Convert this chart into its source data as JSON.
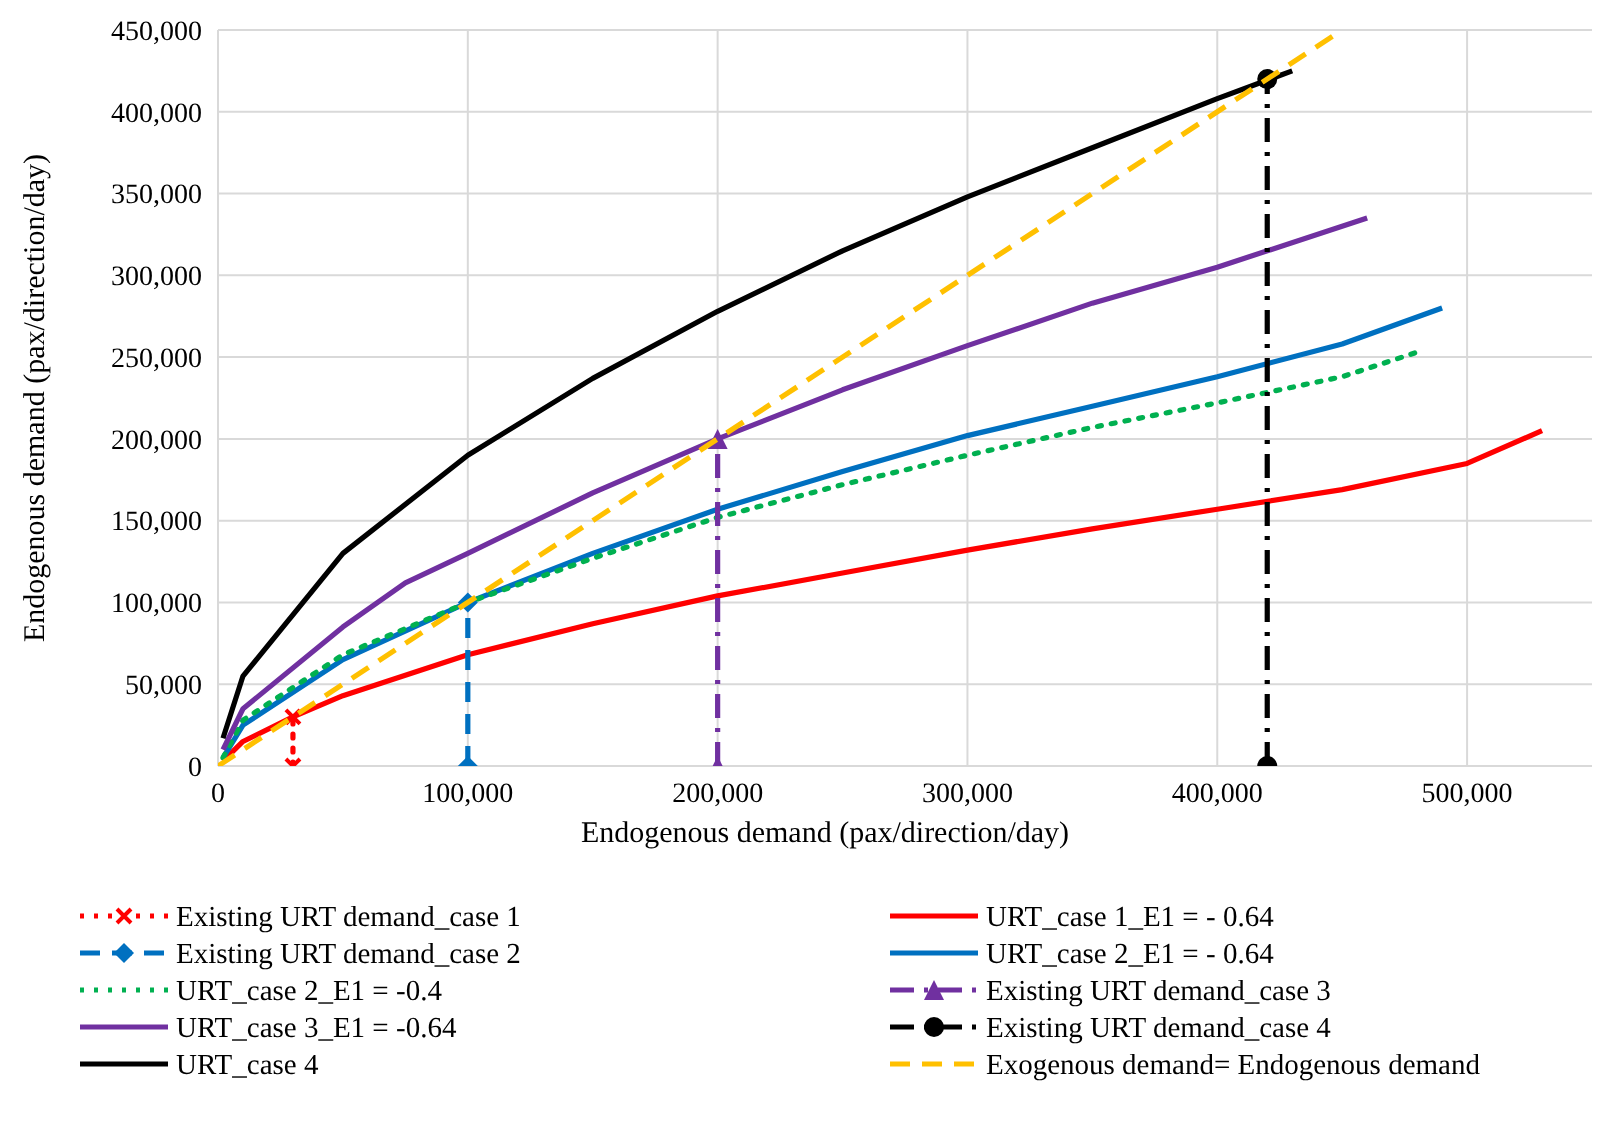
{
  "chart_data": {
    "type": "line",
    "xlabel": "Endogenous demand (pax/direction/day)",
    "ylabel": "Endogenous demand (pax/direction/day)",
    "xlim": [
      0,
      550000
    ],
    "ylim": [
      0,
      450000
    ],
    "xticks": [
      {
        "value": 0,
        "label": "0"
      },
      {
        "value": 100000,
        "label": "100,000"
      },
      {
        "value": 200000,
        "label": "200,000"
      },
      {
        "value": 300000,
        "label": "300,000"
      },
      {
        "value": 400000,
        "label": "400,000"
      },
      {
        "value": 500000,
        "label": "500,000"
      }
    ],
    "yticks": [
      {
        "value": 0,
        "label": "0"
      },
      {
        "value": 50000,
        "label": "50,000"
      },
      {
        "value": 100000,
        "label": "100,000"
      },
      {
        "value": 150000,
        "label": "150,000"
      },
      {
        "value": 200000,
        "label": "200,000"
      },
      {
        "value": 250000,
        "label": "250,000"
      },
      {
        "value": 300000,
        "label": "300,000"
      },
      {
        "value": 350000,
        "label": "350,000"
      },
      {
        "value": 400000,
        "label": "400,000"
      },
      {
        "value": 450000,
        "label": "450,000"
      }
    ],
    "grid": true,
    "legend": "bottom",
    "series": [
      {
        "name": "Existing URT demand_case 1",
        "color": "#ff0000",
        "x": [
          30000,
          30000
        ],
        "values": [
          0,
          30000
        ],
        "line_style": "dotted",
        "marker": "cross"
      },
      {
        "name": "URT_case 1_E1 = - 0.64",
        "color": "#ff0000",
        "x": [
          2000,
          10000,
          30000,
          50000,
          100000,
          150000,
          200000,
          250000,
          300000,
          350000,
          400000,
          450000,
          500000,
          530000
        ],
        "values": [
          3000,
          15000,
          30000,
          43000,
          68000,
          87000,
          104000,
          118000,
          132000,
          145000,
          157000,
          169000,
          185000,
          205000
        ],
        "line_style": "solid",
        "marker": "none"
      },
      {
        "name": "Existing URT demand_case 2",
        "color": "#0070c0",
        "x": [
          100000,
          100000
        ],
        "values": [
          0,
          100000
        ],
        "line_style": "dashed",
        "marker": "diamond"
      },
      {
        "name": "URT_case 2_E1 = - 0.64",
        "color": "#0070c0",
        "x": [
          2000,
          10000,
          50000,
          100000,
          150000,
          200000,
          250000,
          300000,
          350000,
          400000,
          450000,
          490000
        ],
        "values": [
          5000,
          25000,
          65000,
          100000,
          130000,
          157000,
          180000,
          202000,
          220000,
          238000,
          258000,
          280000
        ],
        "line_style": "solid",
        "marker": "none"
      },
      {
        "name": "URT_case 2_E1 = -0.4",
        "color": "#00b050",
        "x": [
          2000,
          10000,
          50000,
          100000,
          150000,
          200000,
          250000,
          300000,
          350000,
          400000,
          450000,
          480000
        ],
        "values": [
          5000,
          28000,
          68000,
          100000,
          127000,
          152000,
          172000,
          190000,
          207000,
          222000,
          238000,
          253000
        ],
        "line_style": "dotted",
        "marker": "none"
      },
      {
        "name": "Existing URT demand_case 3",
        "color": "#7030a0",
        "x": [
          200000,
          200000
        ],
        "values": [
          0,
          200000
        ],
        "line_style": "dashdot",
        "marker": "triangle"
      },
      {
        "name": "URT_case 3_E1 = -0.64",
        "color": "#7030a0",
        "x": [
          2000,
          10000,
          50000,
          75000,
          100000,
          150000,
          200000,
          250000,
          300000,
          350000,
          400000,
          460000
        ],
        "values": [
          10000,
          35000,
          85000,
          112000,
          130000,
          167000,
          200000,
          230000,
          257000,
          283000,
          305000,
          335000
        ],
        "line_style": "solid",
        "marker": "none"
      },
      {
        "name": "Existing URT demand_case 4",
        "color": "#000000",
        "x": [
          420000,
          420000
        ],
        "values": [
          0,
          420000
        ],
        "line_style": "dashdot",
        "marker": "circle"
      },
      {
        "name": "URT_case 4",
        "color": "#000000",
        "x": [
          2000,
          10000,
          50000,
          100000,
          150000,
          200000,
          250000,
          300000,
          350000,
          400000,
          430000
        ],
        "values": [
          17000,
          55000,
          130000,
          190000,
          237000,
          278000,
          315000,
          348000,
          378000,
          408000,
          425000
        ],
        "line_style": "solid",
        "marker": "none"
      },
      {
        "name": "Exogenous demand= Endogenous demand",
        "color": "#ffc000",
        "x": [
          0,
          450000
        ],
        "values": [
          0,
          450000
        ],
        "line_style": "dashed",
        "marker": "none"
      }
    ]
  }
}
